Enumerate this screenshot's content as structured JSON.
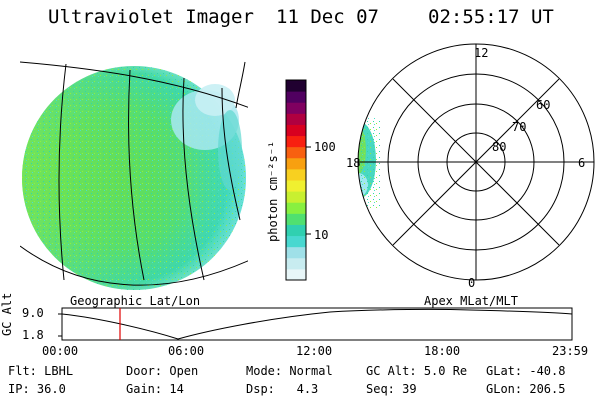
{
  "header": {
    "title": "Ultraviolet Imager",
    "date": "11 Dec 07",
    "time": "02:55:17 UT"
  },
  "panels": {
    "left_label": "Geographic Lat/Lon",
    "right_label": "Apex MLat/MLT"
  },
  "colorbar": {
    "unit_label": "photon cm⁻²s⁻¹",
    "ticks": [
      {
        "label": "100",
        "value": 100
      },
      {
        "label": "10",
        "value": 10
      }
    ],
    "colors": [
      "#e8f6f8",
      "#c8ecf0",
      "#9fe0e8",
      "#48d8d0",
      "#30d0b0",
      "#50e070",
      "#88f040",
      "#c8f030",
      "#f0f030",
      "#f8d020",
      "#f8a010",
      "#f86010",
      "#f82010",
      "#d80020",
      "#b00040",
      "#800060",
      "#500060",
      "#200030"
    ]
  },
  "polar": {
    "mlt_labels": {
      "top": "12",
      "bottom": "0",
      "left": "18",
      "right": "6"
    },
    "lat_labels": [
      "60",
      "70",
      "80"
    ]
  },
  "timeline": {
    "y_title": "GC Alt",
    "y_ticks": [
      "9.0",
      "1.8"
    ],
    "x_ticks": [
      "00:00",
      "06:00",
      "12:00",
      "18:00",
      "23:59"
    ],
    "marker_color": "#e00000"
  },
  "footer": {
    "row1": [
      {
        "key": "Flt:",
        "val": "LBHL"
      },
      {
        "key": "Door:",
        "val": "Open"
      },
      {
        "key": "Mode:",
        "val": "Normal"
      },
      {
        "key": "GC Alt:",
        "val": "5.0 Re"
      },
      {
        "key": "GLat:",
        "val": "-40.8"
      }
    ],
    "row2": [
      {
        "key": "IP:",
        "val": "36.0"
      },
      {
        "key": "Gain:",
        "val": "14"
      },
      {
        "key": "Dsp:",
        "val": "4.3"
      },
      {
        "key": "Seq:",
        "val": "39"
      },
      {
        "key": "GLon:",
        "val": "206.5"
      }
    ]
  }
}
